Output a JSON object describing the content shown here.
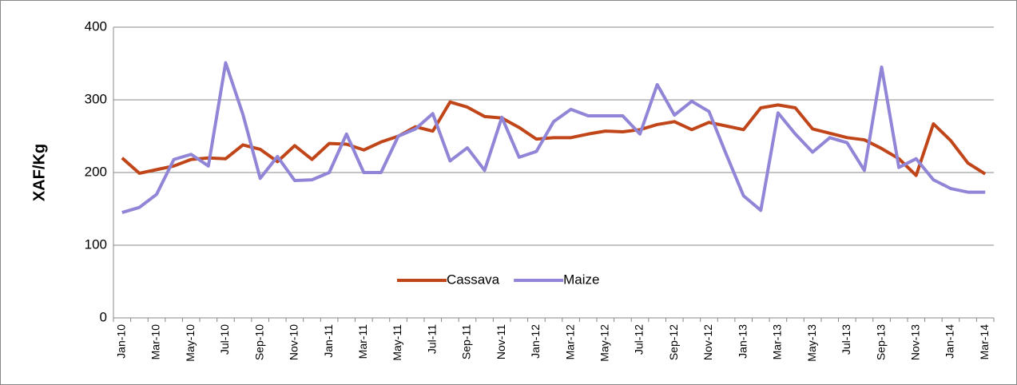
{
  "chart_data": {
    "type": "line",
    "y_label": "XAF/Kg",
    "categories": [
      "Jan-10",
      null,
      "Mar-10",
      null,
      "May-10",
      null,
      "Jul-10",
      null,
      "Sep-10",
      null,
      "Nov-10",
      null,
      "Jan-11",
      null,
      "Mar-11",
      null,
      "May-11",
      null,
      "Jul-11",
      null,
      "Sep-11",
      null,
      "Nov-11",
      null,
      "Jan-12",
      null,
      "Mar-12",
      null,
      "May-12",
      null,
      "Jul-12",
      null,
      "Sep-12",
      null,
      "Nov-12",
      null,
      "Jan-13",
      null,
      "Mar-13",
      null,
      "May-13",
      null,
      "Jul-13",
      null,
      "Sep-13",
      null,
      "Nov-13",
      null,
      "Jan-14",
      null,
      "Mar-14"
    ],
    "series": [
      {
        "name": "Cassava",
        "color": "#c0461a",
        "values": [
          220,
          199,
          204,
          209,
          218,
          220,
          219,
          238,
          232,
          215,
          237,
          218,
          240,
          239,
          231,
          242,
          250,
          263,
          257,
          297,
          290,
          277,
          275,
          262,
          246,
          248,
          248,
          253,
          257,
          256,
          259,
          266,
          270,
          259,
          269,
          264,
          259,
          289,
          293,
          289,
          260,
          254,
          248,
          245,
          233,
          219,
          196,
          267,
          244,
          213,
          198
        ]
      },
      {
        "name": "Maize",
        "color": "#9085d6",
        "values": [
          145,
          152,
          170,
          218,
          225,
          209,
          351,
          280,
          192,
          222,
          189,
          190,
          200,
          253,
          200,
          200,
          250,
          260,
          281,
          216,
          234,
          203,
          276,
          221,
          229,
          270,
          287,
          278,
          278,
          278,
          253,
          321,
          279,
          298,
          284,
          225,
          168,
          148,
          282,
          253,
          228,
          248,
          241,
          203,
          345,
          207,
          219,
          190,
          178,
          173,
          173
        ]
      }
    ],
    "ylim": [
      0,
      400
    ],
    "yticks": [
      0,
      100,
      200,
      300,
      400
    ],
    "grid": true,
    "legend": "inside-bottom-center"
  }
}
